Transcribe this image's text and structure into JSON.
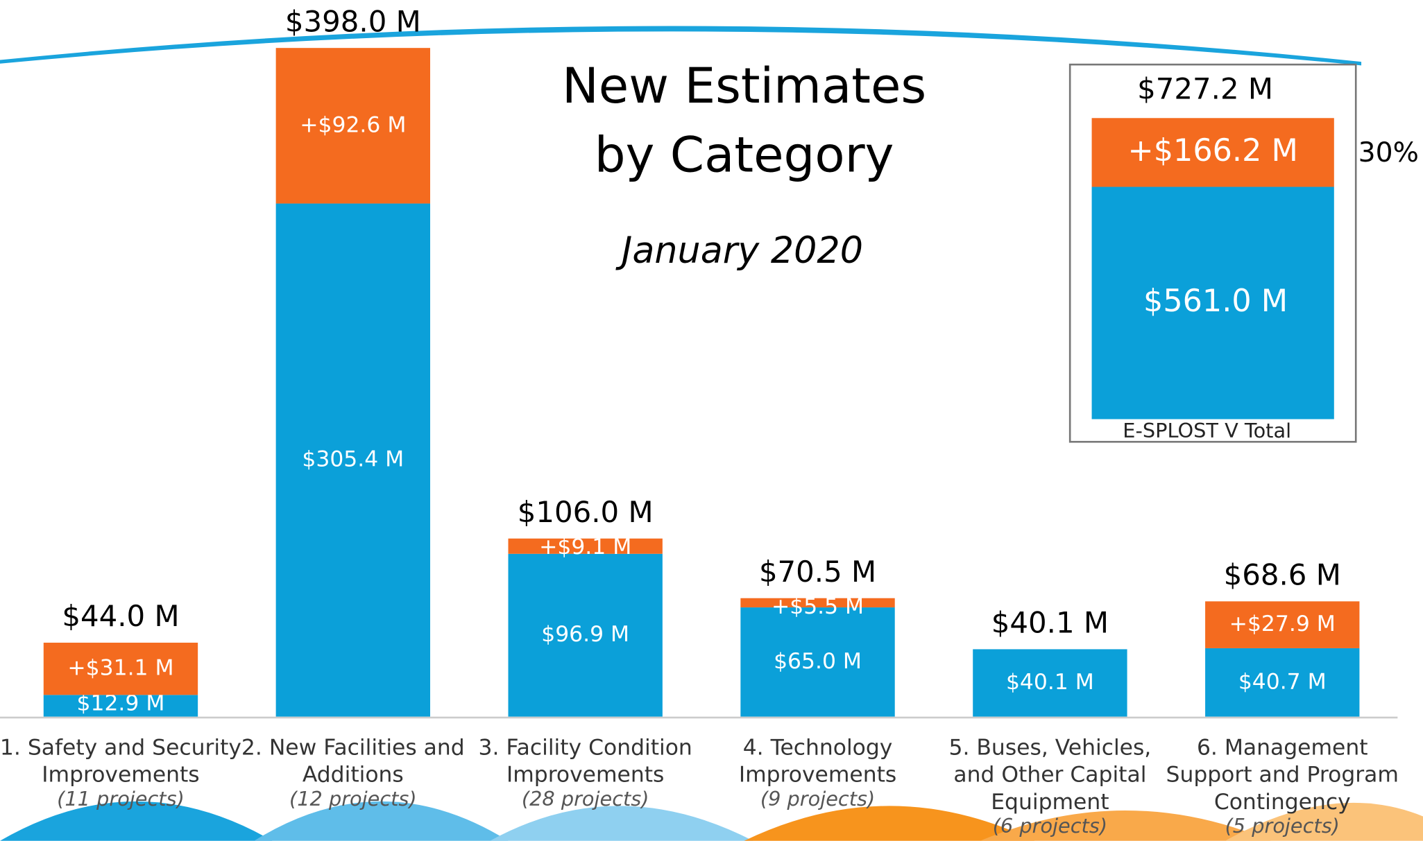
{
  "chart_data": {
    "type": "bar",
    "title": [
      "New Estimates",
      "by Category"
    ],
    "subtitle": "January 2020",
    "categories": [
      [
        "1. Safety and Security",
        "Improvements"
      ],
      [
        "2. New Facilities and",
        "Additions"
      ],
      [
        "3. Facility Condition",
        "Improvements"
      ],
      [
        "4. Technology",
        "Improvements"
      ],
      [
        "5. Buses, Vehicles,",
        "and Other Capital",
        "Equipment"
      ],
      [
        "6. Management",
        "Support and Program",
        "Contingency"
      ]
    ],
    "category_notes": [
      "(11 projects)",
      "(12 projects)",
      "(28 projects)",
      "(9 projects)",
      "(6 projects)",
      "(5 projects)"
    ],
    "series": [
      {
        "color": "#0ba0d9",
        "values": [
          12.9,
          305.4,
          96.9,
          65.0,
          40.1,
          40.7
        ],
        "value_labels": [
          "$12.9 M",
          "$305.4 M",
          "$96.9 M",
          "$65.0 M",
          "$40.1 M",
          "$40.7 M"
        ]
      },
      {
        "color": "#f46b1f",
        "values": [
          31.1,
          92.6,
          9.1,
          5.5,
          null,
          27.9
        ],
        "value_labels": [
          "+$31.1 M",
          "+$92.6 M",
          "+$9.1 M",
          "+$5.5 M",
          null,
          "+$27.9 M"
        ]
      }
    ],
    "totals": {
      "values": [
        44.0,
        398.0,
        106.0,
        70.5,
        40.1,
        68.6
      ],
      "value_labels": [
        "$44.0 M",
        "$398.0 M",
        "$106.0 M",
        "$70.5 M",
        "$40.1 M",
        "$68.6 M"
      ]
    },
    "ylim": [
      0,
      400
    ],
    "inset": {
      "label": "E-SPLOST V Total",
      "base": 561.0,
      "base_label": "$561.0 M",
      "increase": 166.2,
      "increase_label": "+$166.2 M",
      "total": 727.2,
      "total_label": "$727.2 M",
      "increase_percent": 30,
      "increase_percent_label": "30%"
    }
  }
}
